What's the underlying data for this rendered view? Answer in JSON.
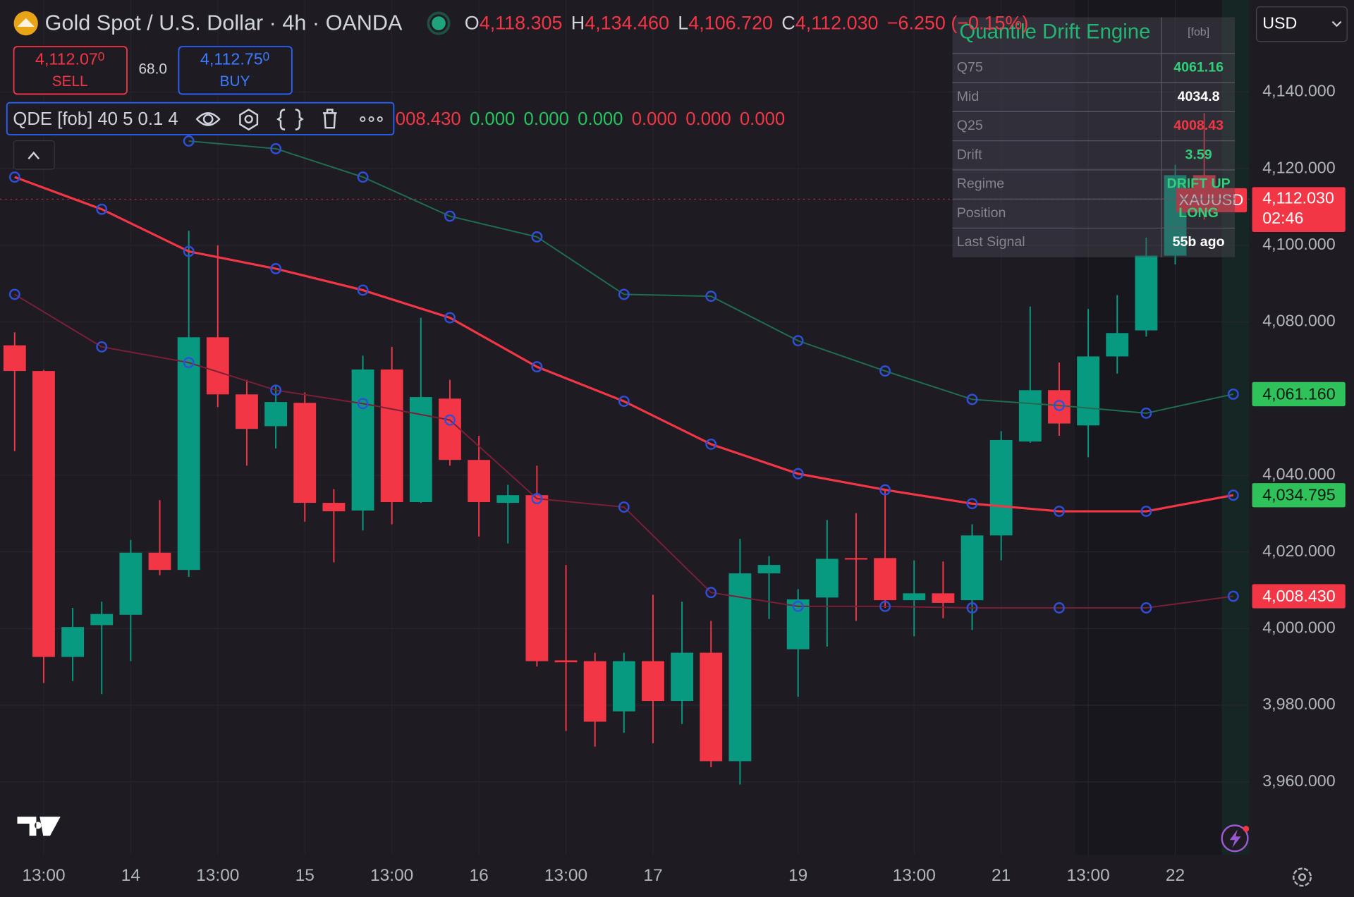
{
  "chart_data": {
    "type": "candlestick",
    "title": "Gold Spot / U.S. Dollar · 4h · OANDA",
    "categories": [
      null,
      "13:00",
      null,
      null,
      "14",
      null,
      null,
      "13:00",
      null,
      null,
      "15",
      null,
      null,
      "13:00",
      null,
      null,
      "16",
      null,
      null,
      "13:00",
      null,
      null,
      "17",
      null,
      null,
      null,
      null,
      "19",
      null,
      null,
      null,
      "13:00",
      null,
      null,
      "21",
      null,
      null,
      "13:00",
      null,
      null,
      "22",
      null,
      null
    ],
    "open": [
      4073.9,
      4067.2,
      3992.6,
      4000.9,
      4003.6,
      4019.8,
      4015.3,
      4076,
      4061.1,
      4052.8,
      4058.9,
      4032.8,
      4030.8,
      4067.6,
      4033,
      4060,
      4044,
      4032.8,
      4034.8,
      3991.7,
      3991.5,
      3978.4,
      3991.5,
      3981.1,
      3993.7,
      3965.4,
      4014.4,
      3994.6,
      4008.1,
      4018.4,
      4018.4,
      4007.4,
      4009.2,
      4007.4,
      4024.3,
      4048.8,
      4062.2,
      4053,
      4071,
      4077.8,
      4097.3,
      4118.305,
      null
    ],
    "high": [
      4077.3,
      4067.5,
      4005.4,
      4007,
      4023.1,
      4033.5,
      4103.8,
      4100,
      4064.9,
      4063.4,
      4061.6,
      4036.4,
      4071.2,
      4073.5,
      4081.1,
      4064.9,
      4050.3,
      4037.5,
      4042.5,
      4016.6,
      3993.7,
      3993.7,
      4008.8,
      4007,
      4002,
      4023.4,
      4018.9,
      4010.3,
      4028.3,
      4030.1,
      4036.4,
      4017.8,
      4017.5,
      4027.2,
      4051.5,
      4084,
      4069.4,
      4083.4,
      4087,
      4102,
      4121,
      4134.46,
      null
    ],
    "low": [
      4046.3,
      3985.8,
      3986.3,
      3982.9,
      3991.5,
      4013.9,
      4013.5,
      4057.8,
      4042.5,
      4047,
      4027.9,
      4017.3,
      4025.6,
      4027.2,
      4032.8,
      4042.5,
      4024,
      4022.2,
      3990.1,
      3973.3,
      3969.2,
      3972.8,
      3970.1,
      3975.1,
      3963.8,
      3959.3,
      4002.5,
      3982.2,
      3995.3,
      4002,
      4005.4,
      3998,
      4002.7,
      3999.6,
      4017.8,
      4048.5,
      4050.3,
      4044.7,
      4066.5,
      4076.2,
      4095,
      4106.72,
      null
    ],
    "close": [
      4067.2,
      3992.6,
      4000.4,
      4003.8,
      4019.8,
      4015.3,
      4076,
      4061.1,
      4052.1,
      4059.1,
      4032.8,
      4030.6,
      4067.6,
      4033,
      4060.4,
      4044,
      4033,
      4034.8,
      3991.5,
      3991.2,
      3975.7,
      3991.5,
      3981.1,
      3993.7,
      3965.4,
      4014.4,
      4016.6,
      4007.6,
      4018.2,
      4018,
      4007.4,
      4009.2,
      4006.7,
      4024.3,
      4049.2,
      4062.2,
      4053.5,
      4071,
      4077.1,
      4097.3,
      4118.3,
      4112.03,
      null
    ],
    "up_color": "#089981",
    "down_color": "#f23645",
    "ylim": [
      3941,
      4164
    ],
    "yticks": [
      {
        "value": 3960,
        "label": "3,960.000"
      },
      {
        "value": 3980,
        "label": "3,980.000"
      },
      {
        "value": 4000,
        "label": "4,000.000"
      },
      {
        "value": 4020,
        "label": "4,020.000"
      },
      {
        "value": 4040,
        "label": "4,040.000"
      },
      {
        "value": 4080,
        "label": "4,080.000"
      },
      {
        "value": 4100,
        "label": "4,100.000"
      },
      {
        "value": 4120,
        "label": "4,120.000"
      },
      {
        "value": 4140,
        "label": "4,140.000"
      }
    ],
    "grid": true,
    "series": [
      {
        "color": "#1f6e50",
        "x": [
          6,
          9,
          12,
          15,
          18,
          21,
          24,
          27,
          30,
          33,
          36,
          39,
          42
        ],
        "values": [
          4127.2,
          4125.2,
          4117.8,
          4107.6,
          4102.2,
          4087.2,
          4086.7,
          4075.1,
          4067.2,
          4059.8,
          4058.2,
          4056.2,
          4061.16
        ]
      },
      {
        "color": "#f23645",
        "x": [
          0,
          3,
          6,
          9,
          12,
          15,
          18,
          21,
          24,
          27,
          30,
          33,
          36,
          39,
          42
        ],
        "values": [
          4117.8,
          4109.4,
          4098.4,
          4093.9,
          4088.3,
          4081.1,
          4068.3,
          4059.3,
          4048.1,
          4040.4,
          4036.2,
          4032.6,
          4030.6,
          4030.6,
          4034.795
        ]
      },
      {
        "color": "#7a1f36",
        "x": [
          0,
          3,
          6,
          9,
          12,
          15,
          18,
          21,
          24,
          27,
          30,
          33,
          36,
          39,
          42
        ],
        "values": [
          4087.2,
          4073.5,
          4069.4,
          4062.2,
          4058.7,
          4054.4,
          4033.9,
          4031.7,
          4009.4,
          4005.8,
          4005.8,
          4005.4,
          4005.4,
          4005.4,
          4008.43
        ]
      }
    ],
    "price_labels": [
      {
        "value": 4061.16,
        "label": "4,061.160",
        "color": "#2fc25b"
      },
      {
        "value": 4034.795,
        "label": "4,034.795",
        "color": "#2fc25b"
      },
      {
        "value": 4008.43,
        "label": "4,008.430",
        "color": "#f23645"
      }
    ],
    "last_price": {
      "value": 4112.03,
      "label": "4,112.030",
      "countdown": "02:46",
      "color": "#f23645"
    }
  },
  "header": {
    "symbol": "Gold Spot / U.S. Dollar · 4h · OANDA",
    "ohlc": [
      {
        "label": "O",
        "value": "4,118.305"
      },
      {
        "label": "H",
        "value": "4,134.460"
      },
      {
        "label": "L",
        "value": "4,106.720"
      },
      {
        "label": "C",
        "value": "4,112.030"
      }
    ],
    "change": "−6.250 (−0.15%)"
  },
  "order_panel": {
    "sell_price": "4,112.07",
    "sell_tail": "0",
    "sell_label": "SELL",
    "spread": "68.0",
    "buy_price": "4,112.75",
    "buy_tail": "0",
    "buy_label": "BUY"
  },
  "indicator": {
    "name": "QDE [fob] 40 5 0.1 4",
    "values": [
      "008.430",
      "0.000",
      "0.000",
      "0.000",
      "0.000",
      "0.000",
      "0.000"
    ],
    "colors": [
      "#f23645",
      "#22c55e",
      "#22c55e",
      "#22c55e",
      "#f23645",
      "#f23645",
      "#f23645"
    ]
  },
  "table": {
    "title": "Quantile Drift Engine",
    "tag": "[fob]",
    "rows": [
      {
        "label": "Q75",
        "value": "4061.16",
        "color": "#2fd07a"
      },
      {
        "label": "Mid",
        "value": "4034.8",
        "color": "#ffffff"
      },
      {
        "label": "Q25",
        "value": "4008.43",
        "color": "#f23645"
      },
      {
        "label": "Drift",
        "value": "3.59",
        "color": "#2fd07a"
      },
      {
        "label": "Regime",
        "value": "DRIFT UP",
        "color": "#2fd07a"
      },
      {
        "label": "Position",
        "value": "LONG",
        "color": "#2fd07a"
      },
      {
        "label": "Last Signal",
        "value": "55b ago",
        "color": "#ffffff"
      }
    ]
  },
  "symbol_tag": "XAUUSD",
  "currency": "USD"
}
